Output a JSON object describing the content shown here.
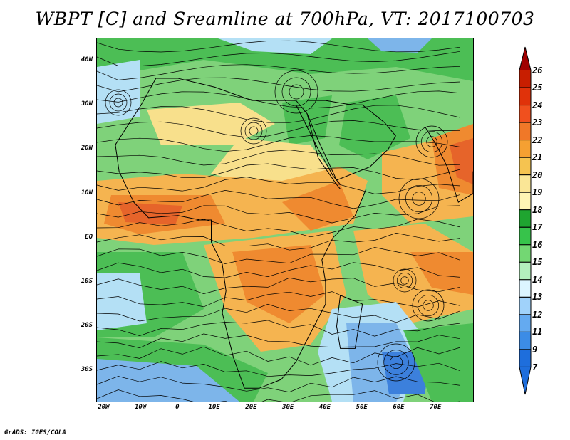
{
  "title": "WBPT [C] and Sreamline at 700hPa, VT: 2017100703",
  "credit": "GrADS: IGES/COLA",
  "y_axis": {
    "labels": [
      "40N",
      "30N",
      "20N",
      "10N",
      "EQ",
      "10S",
      "20S",
      "30S"
    ],
    "lat": [
      40,
      30,
      20,
      10,
      0,
      -10,
      -20,
      -30
    ]
  },
  "x_axis": {
    "labels": [
      "20W",
      "10W",
      "0",
      "10E",
      "20E",
      "30E",
      "40E",
      "50E",
      "60E",
      "70E"
    ],
    "lon": [
      -20,
      -10,
      0,
      10,
      20,
      30,
      40,
      50,
      60,
      70
    ]
  },
  "map_extent": {
    "lon": [
      -22,
      80
    ],
    "lat": [
      -37,
      45
    ]
  },
  "colorbar": {
    "labels": [
      "26",
      "25",
      "24",
      "23",
      "22",
      "21",
      "20",
      "19",
      "18",
      "17",
      "16",
      "15",
      "14",
      "13",
      "12",
      "11",
      "9",
      "7"
    ],
    "colors": [
      "#a00000",
      "#c81e00",
      "#e0320a",
      "#f0501e",
      "#f07828",
      "#f5a032",
      "#f5c350",
      "#fae696",
      "#fff5b4",
      "#1fa530",
      "#37c34b",
      "#73d773",
      "#b4f0be",
      "#dcf5ff",
      "#a0d2fa",
      "#64aaf0",
      "#3c8ce6",
      "#1e6edc"
    ],
    "arrow_top_color": "#a00000",
    "arrow_bottom_color": "#1e6edc"
  },
  "field_colors": {
    "ocean_cool": "#7db5ea",
    "cool_pale": "#b4e0f5",
    "green": "#4cbe55",
    "green_light": "#7fd27a",
    "yellow": "#f8e08c",
    "orange_light": "#f5b450",
    "orange": "#ef8a30",
    "red_orange": "#e6642a",
    "blue_deep": "#3c80dc"
  }
}
